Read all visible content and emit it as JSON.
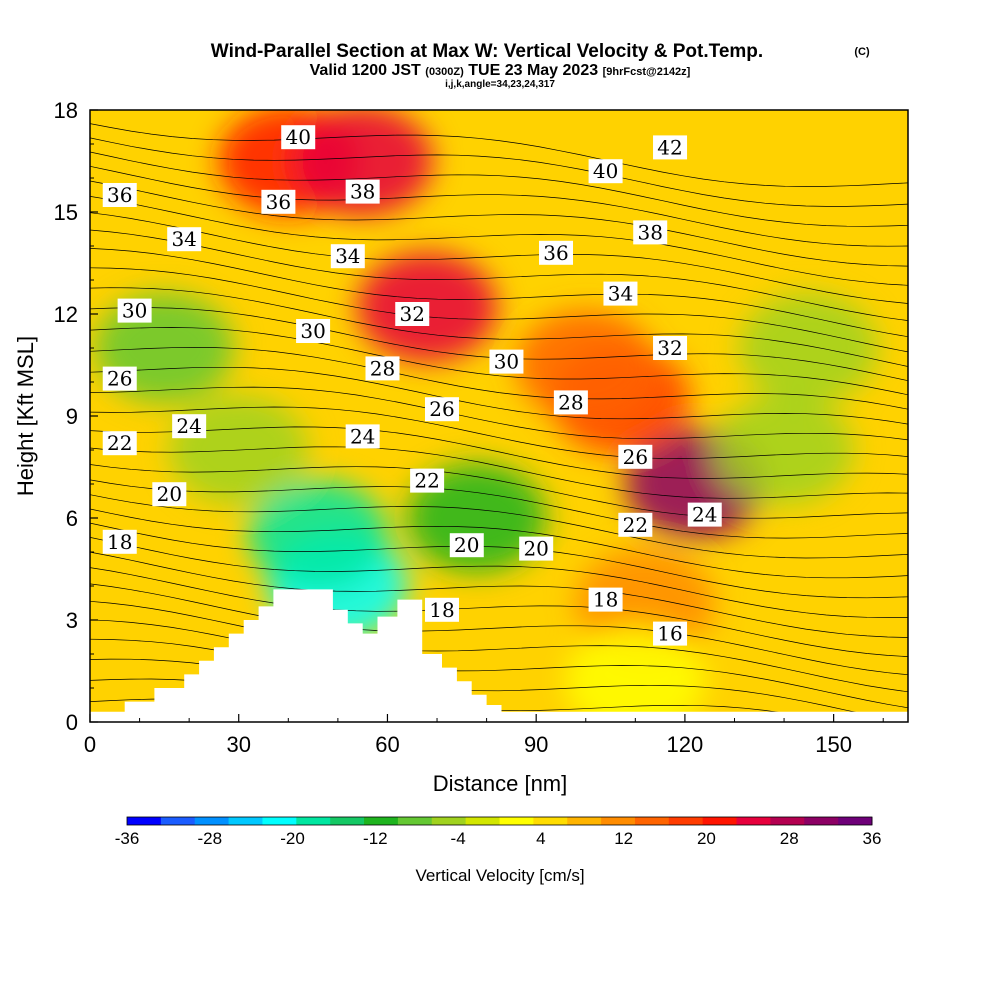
{
  "title": {
    "main": "Wind-Parallel Section at Max W: Vertical Velocity & Pot.Temp.",
    "copyright": "(C)",
    "valid_a": "Valid 1200 JST",
    "valid_z": "(0300Z)",
    "valid_b": "TUE 23 May 2023",
    "fcst": "[9hrFcst@2142z]",
    "ijk": "i,j,k,angle=34,23,24,317"
  },
  "colorbar": {
    "label": "Vertical Velocity [cm/s]",
    "ticks": [
      "-36",
      "-28",
      "-20",
      "-12",
      "-4",
      "4",
      "12",
      "20",
      "28",
      "36"
    ],
    "colors": [
      "#0000ff",
      "#1a5cff",
      "#0090ff",
      "#00c8ff",
      "#00ffff",
      "#00e6a0",
      "#14c864",
      "#1eb41e",
      "#64c832",
      "#a0d21e",
      "#d2e600",
      "#ffff00",
      "#ffdc00",
      "#ffb400",
      "#ff8c00",
      "#ff6400",
      "#ff3c00",
      "#ff1400",
      "#e6003c",
      "#b40050",
      "#8c0064",
      "#6e0078"
    ]
  },
  "chart_data": {
    "type": "heatmap",
    "xlabel": "Distance [nm]",
    "ylabel": "Height [Kft MSL]",
    "xlim": [
      0,
      165
    ],
    "ylim": [
      0,
      18
    ],
    "xticks": [
      "0",
      "30",
      "60",
      "90",
      "120",
      "150"
    ],
    "yticks": [
      "0",
      "3",
      "6",
      "9",
      "12",
      "15",
      "18"
    ],
    "fill_variable": "Vertical Velocity [cm/s]",
    "fill_range": [
      -36,
      36
    ],
    "fill_features": [
      {
        "x": 40,
        "y": 16.5,
        "value": 22
      },
      {
        "x": 55,
        "y": 16.5,
        "value": 24
      },
      {
        "x": 68,
        "y": 12.2,
        "value": 24
      },
      {
        "x": 122,
        "y": 7,
        "value": 30
      },
      {
        "x": 107,
        "y": 9.5,
        "value": 18
      },
      {
        "x": 100,
        "y": 10.5,
        "value": 14
      },
      {
        "x": 112,
        "y": 3.5,
        "value": 10
      },
      {
        "x": 30,
        "y": 8,
        "value": -6
      },
      {
        "x": 15,
        "y": 11,
        "value": -8
      },
      {
        "x": 50,
        "y": 4,
        "value": -22
      },
      {
        "x": 46,
        "y": 5.5,
        "value": -18
      },
      {
        "x": 78,
        "y": 6,
        "value": -10
      },
      {
        "x": 145,
        "y": 11,
        "value": -6
      },
      {
        "x": 140,
        "y": 8,
        "value": -4
      },
      {
        "x": 110,
        "y": 1.2,
        "value": 0
      }
    ],
    "contour_variable": "Potential Temperature",
    "contour_levels": [
      16,
      18,
      20,
      22,
      24,
      26,
      28,
      30,
      32,
      34,
      36,
      38,
      40,
      42
    ],
    "contour_labels": [
      {
        "text": "40",
        "x": 42,
        "y": 17.2
      },
      {
        "text": "38",
        "x": 55,
        "y": 15.6
      },
      {
        "text": "36",
        "x": 38,
        "y": 15.3
      },
      {
        "text": "36",
        "x": 6,
        "y": 15.5
      },
      {
        "text": "34",
        "x": 19,
        "y": 14.2
      },
      {
        "text": "34",
        "x": 52,
        "y": 13.7
      },
      {
        "text": "32",
        "x": 65,
        "y": 12.0
      },
      {
        "text": "30",
        "x": 9,
        "y": 12.1
      },
      {
        "text": "30",
        "x": 45,
        "y": 11.5
      },
      {
        "text": "28",
        "x": 59,
        "y": 10.4
      },
      {
        "text": "26",
        "x": 6,
        "y": 10.1
      },
      {
        "text": "26",
        "x": 71,
        "y": 9.2
      },
      {
        "text": "24",
        "x": 20,
        "y": 8.7
      },
      {
        "text": "24",
        "x": 55,
        "y": 8.4
      },
      {
        "text": "22",
        "x": 6,
        "y": 8.2
      },
      {
        "text": "22",
        "x": 68,
        "y": 7.1
      },
      {
        "text": "20",
        "x": 16,
        "y": 6.7
      },
      {
        "text": "20",
        "x": 76,
        "y": 5.2
      },
      {
        "text": "20",
        "x": 90,
        "y": 5.1
      },
      {
        "text": "18",
        "x": 6,
        "y": 5.3
      },
      {
        "text": "18",
        "x": 71,
        "y": 3.3
      },
      {
        "text": "18",
        "x": 104,
        "y": 3.6
      },
      {
        "text": "16",
        "x": 117,
        "y": 2.6
      },
      {
        "text": "28",
        "x": 97,
        "y": 9.4
      },
      {
        "text": "30",
        "x": 84,
        "y": 10.6
      },
      {
        "text": "32",
        "x": 117,
        "y": 11.0
      },
      {
        "text": "34",
        "x": 107,
        "y": 12.6
      },
      {
        "text": "36",
        "x": 94,
        "y": 13.8
      },
      {
        "text": "38",
        "x": 113,
        "y": 14.4
      },
      {
        "text": "40",
        "x": 104,
        "y": 16.2
      },
      {
        "text": "42",
        "x": 117,
        "y": 16.9
      },
      {
        "text": "26",
        "x": 110,
        "y": 7.8
      },
      {
        "text": "24",
        "x": 124,
        "y": 6.1
      },
      {
        "text": "22",
        "x": 110,
        "y": 5.8
      }
    ],
    "terrain_profile": {
      "x": [
        0,
        7,
        7,
        13,
        13,
        19,
        19,
        22,
        22,
        25,
        25,
        28,
        28,
        31,
        31,
        34,
        34,
        37,
        37,
        40,
        40,
        49,
        49,
        52,
        52,
        55,
        55,
        58,
        58,
        62,
        62,
        67,
        67,
        71,
        71,
        74,
        74,
        77,
        77,
        80,
        80,
        83,
        83,
        86,
        86,
        165
      ],
      "y": [
        0.3,
        0.3,
        0.6,
        0.6,
        1.0,
        1.0,
        1.4,
        1.4,
        1.8,
        1.8,
        2.2,
        2.2,
        2.6,
        2.6,
        3.0,
        3.0,
        3.4,
        3.4,
        3.9,
        3.9,
        3.9,
        3.9,
        3.3,
        3.3,
        2.9,
        2.9,
        2.6,
        2.6,
        3.1,
        3.1,
        3.6,
        3.6,
        2.0,
        2.0,
        1.6,
        1.6,
        1.2,
        1.2,
        0.8,
        0.8,
        0.5,
        0.5,
        0.3,
        0.3,
        0.3,
        0.3
      ]
    }
  }
}
